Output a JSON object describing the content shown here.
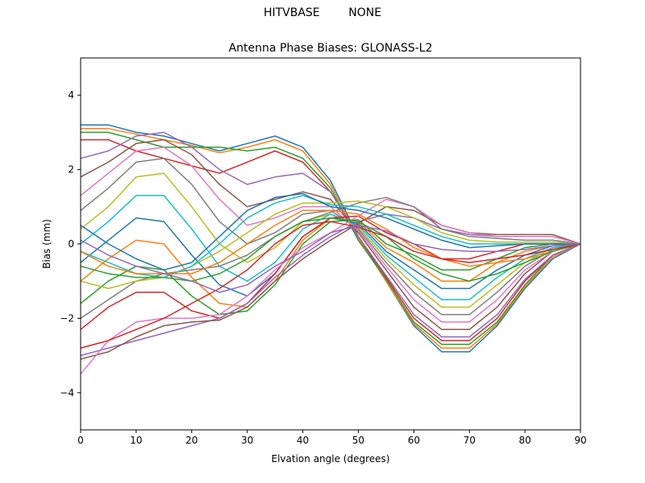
{
  "figure": {
    "suptitle": "HITVBASE        NONE"
  },
  "chart_data": {
    "type": "line",
    "title": "Antenna Phase Biases: GLONASS-L2",
    "xlabel": "Elvation angle (degrees)",
    "ylabel": "Bias (mm)",
    "xlim": [
      0,
      90
    ],
    "ylim": [
      -5,
      5
    ],
    "x_ticks": [
      "0",
      "10",
      "20",
      "30",
      "40",
      "50",
      "60",
      "70",
      "80",
      "90"
    ],
    "y_ticks": [
      "−4",
      "−2",
      "0",
      "2",
      "4"
    ],
    "grid": false,
    "legend": "none",
    "colors": [
      "#1f77b4",
      "#ff7f0e",
      "#2ca02c",
      "#d62728",
      "#9467bd",
      "#8c564b",
      "#e377c2",
      "#7f7f7f",
      "#bcbd22",
      "#17becf"
    ],
    "x": [
      0,
      5,
      10,
      15,
      20,
      25,
      30,
      35,
      40,
      45,
      50,
      55,
      60,
      65,
      70,
      75,
      80,
      85,
      90
    ],
    "series": [
      {
        "values": [
          3.2,
          3.2,
          3.0,
          2.9,
          2.7,
          2.5,
          2.7,
          2.9,
          2.6,
          1.7,
          0.2,
          -1.0,
          -2.2,
          -2.9,
          -2.9,
          -2.2,
          -1.2,
          -0.4,
          0.0
        ]
      },
      {
        "values": [
          3.1,
          3.1,
          2.95,
          2.8,
          2.65,
          2.45,
          2.6,
          2.8,
          2.5,
          1.6,
          0.15,
          -1.0,
          -2.15,
          -2.8,
          -2.8,
          -2.15,
          -1.15,
          -0.35,
          0.0
        ]
      },
      {
        "values": [
          3.0,
          3.0,
          2.8,
          2.6,
          2.6,
          2.6,
          2.5,
          2.6,
          2.3,
          1.5,
          0.1,
          -0.95,
          -2.1,
          -2.7,
          -2.7,
          -2.1,
          -1.1,
          -0.3,
          0.0
        ]
      },
      {
        "values": [
          2.8,
          2.8,
          2.5,
          2.3,
          2.1,
          1.9,
          2.2,
          2.5,
          2.2,
          1.4,
          0.2,
          -0.9,
          -2.0,
          -2.6,
          -2.6,
          -2.0,
          -1.0,
          -0.3,
          0.0
        ]
      },
      {
        "values": [
          2.3,
          2.5,
          2.9,
          3.0,
          2.6,
          2.0,
          1.6,
          1.8,
          1.9,
          1.4,
          0.2,
          -0.85,
          -1.9,
          -2.5,
          -2.5,
          -1.9,
          -0.95,
          -0.3,
          0.0
        ]
      },
      {
        "values": [
          1.8,
          2.2,
          2.7,
          2.8,
          2.4,
          1.6,
          1.0,
          1.2,
          1.4,
          1.2,
          0.3,
          -0.7,
          -1.7,
          -2.3,
          -2.3,
          -1.7,
          -0.8,
          -0.2,
          0.0
        ]
      },
      {
        "values": [
          1.3,
          1.9,
          2.5,
          2.6,
          2.1,
          1.2,
          0.5,
          0.7,
          1.0,
          1.0,
          0.35,
          -0.6,
          -1.5,
          -2.1,
          -2.1,
          -1.5,
          -0.7,
          -0.2,
          0.0
        ]
      },
      {
        "values": [
          0.9,
          1.5,
          2.2,
          2.3,
          1.6,
          0.6,
          0.0,
          0.3,
          0.8,
          0.9,
          0.4,
          -0.5,
          -1.3,
          -1.9,
          -1.9,
          -1.3,
          -0.6,
          -0.15,
          0.0
        ]
      },
      {
        "values": [
          0.4,
          1.0,
          1.8,
          1.9,
          1.0,
          0.0,
          -0.5,
          -0.1,
          0.6,
          0.8,
          0.45,
          -0.4,
          -1.1,
          -1.7,
          -1.7,
          -1.1,
          -0.5,
          -0.1,
          0.0
        ]
      },
      {
        "values": [
          0.0,
          0.6,
          1.3,
          1.3,
          0.4,
          -0.6,
          -1.0,
          -0.5,
          0.4,
          0.8,
          0.5,
          -0.3,
          -0.9,
          -1.5,
          -1.5,
          -0.9,
          -0.4,
          -0.1,
          0.0
        ]
      },
      {
        "values": [
          -0.5,
          0.1,
          0.7,
          0.6,
          -0.3,
          -1.1,
          -1.4,
          -0.8,
          0.2,
          0.7,
          0.55,
          -0.2,
          -0.7,
          -1.2,
          -1.2,
          -0.7,
          -0.3,
          -0.05,
          0.0
        ]
      },
      {
        "values": [
          -1.0,
          -0.4,
          0.1,
          0.0,
          -0.9,
          -1.6,
          -1.7,
          -1.0,
          0.1,
          0.7,
          0.6,
          -0.1,
          -0.5,
          -1.0,
          -1.0,
          -0.5,
          -0.2,
          -0.05,
          0.0
        ]
      },
      {
        "values": [
          -1.6,
          -1.0,
          -0.6,
          -0.7,
          -1.4,
          -1.9,
          -1.8,
          -1.1,
          0.0,
          0.6,
          0.65,
          0.0,
          -0.3,
          -0.7,
          -0.7,
          -0.4,
          -0.1,
          0.0,
          0.0
        ]
      },
      {
        "values": [
          -2.3,
          -1.7,
          -1.3,
          -1.3,
          -1.8,
          -2.0,
          -1.6,
          -0.8,
          0.2,
          0.7,
          0.75,
          0.3,
          0.0,
          -0.4,
          -0.4,
          -0.2,
          0.0,
          0.0,
          0.0
        ]
      },
      {
        "values": [
          -3.0,
          -2.8,
          -2.6,
          -2.4,
          -2.2,
          -2.0,
          -1.6,
          -0.9,
          -0.3,
          0.2,
          0.6,
          0.8,
          0.7,
          0.4,
          0.25,
          0.2,
          0.2,
          0.2,
          0.0
        ]
      },
      {
        "values": [
          -3.1,
          -2.9,
          -2.5,
          -2.2,
          -2.1,
          -2.05,
          -1.7,
          -1.0,
          -0.4,
          0.1,
          0.55,
          1.0,
          0.9,
          0.5,
          0.3,
          0.25,
          0.25,
          0.25,
          0.0
        ]
      },
      {
        "values": [
          -3.5,
          -2.6,
          -2.1,
          -2.0,
          -2.0,
          -1.9,
          -1.4,
          -0.7,
          -0.1,
          0.3,
          0.75,
          1.2,
          1.0,
          0.5,
          0.3,
          0.2,
          0.2,
          0.2,
          0.0
        ]
      },
      {
        "values": [
          -2.0,
          -1.5,
          -1.0,
          -0.8,
          -0.7,
          -0.6,
          -0.3,
          0.2,
          0.6,
          0.85,
          1.1,
          1.25,
          1.0,
          0.4,
          0.2,
          0.15,
          0.1,
          0.1,
          0.0
        ]
      },
      {
        "values": [
          -1.0,
          -1.2,
          -1.0,
          -0.9,
          -0.6,
          -0.2,
          0.3,
          0.8,
          1.1,
          1.1,
          1.15,
          1.0,
          0.7,
          0.3,
          0.1,
          0.05,
          0.05,
          0.05,
          0.0
        ]
      },
      {
        "values": [
          -0.2,
          -0.5,
          -0.8,
          -0.9,
          -0.6,
          0.0,
          0.7,
          1.1,
          1.3,
          1.05,
          1.0,
          0.8,
          0.5,
          0.2,
          0.0,
          0.0,
          0.0,
          0.0,
          0.0
        ]
      },
      {
        "values": [
          0.5,
          0.0,
          -0.4,
          -0.7,
          -0.5,
          0.2,
          0.9,
          1.25,
          1.35,
          1.0,
          0.9,
          0.7,
          0.4,
          0.1,
          -0.1,
          -0.05,
          0.0,
          0.0,
          0.0
        ]
      },
      {
        "values": [
          -0.2,
          -0.6,
          -0.8,
          -0.8,
          -0.8,
          -0.5,
          0.0,
          0.5,
          0.9,
          0.9,
          0.8,
          0.4,
          -0.1,
          -0.4,
          -0.6,
          -0.5,
          -0.4,
          -0.2,
          0.0
        ]
      },
      {
        "values": [
          -0.6,
          -0.8,
          -0.9,
          -0.9,
          -1.0,
          -0.8,
          -0.4,
          0.2,
          0.6,
          0.7,
          0.6,
          0.2,
          -0.4,
          -0.8,
          -1.0,
          -0.8,
          -0.5,
          -0.2,
          0.0
        ]
      },
      {
        "values": [
          -2.8,
          -2.6,
          -2.3,
          -2.0,
          -1.6,
          -1.2,
          -0.7,
          0.0,
          0.5,
          0.6,
          0.45,
          0.2,
          -0.2,
          -0.4,
          -0.5,
          -0.4,
          -0.3,
          -0.15,
          0.0
        ]
      },
      {
        "values": [
          0.1,
          -0.3,
          -0.6,
          -0.8,
          -1.0,
          -1.3,
          -1.1,
          -0.6,
          -0.2,
          0.3,
          0.5,
          0.35,
          0.0,
          -0.15,
          -0.2,
          -0.2,
          -0.15,
          -0.05,
          0.0
        ]
      }
    ]
  }
}
